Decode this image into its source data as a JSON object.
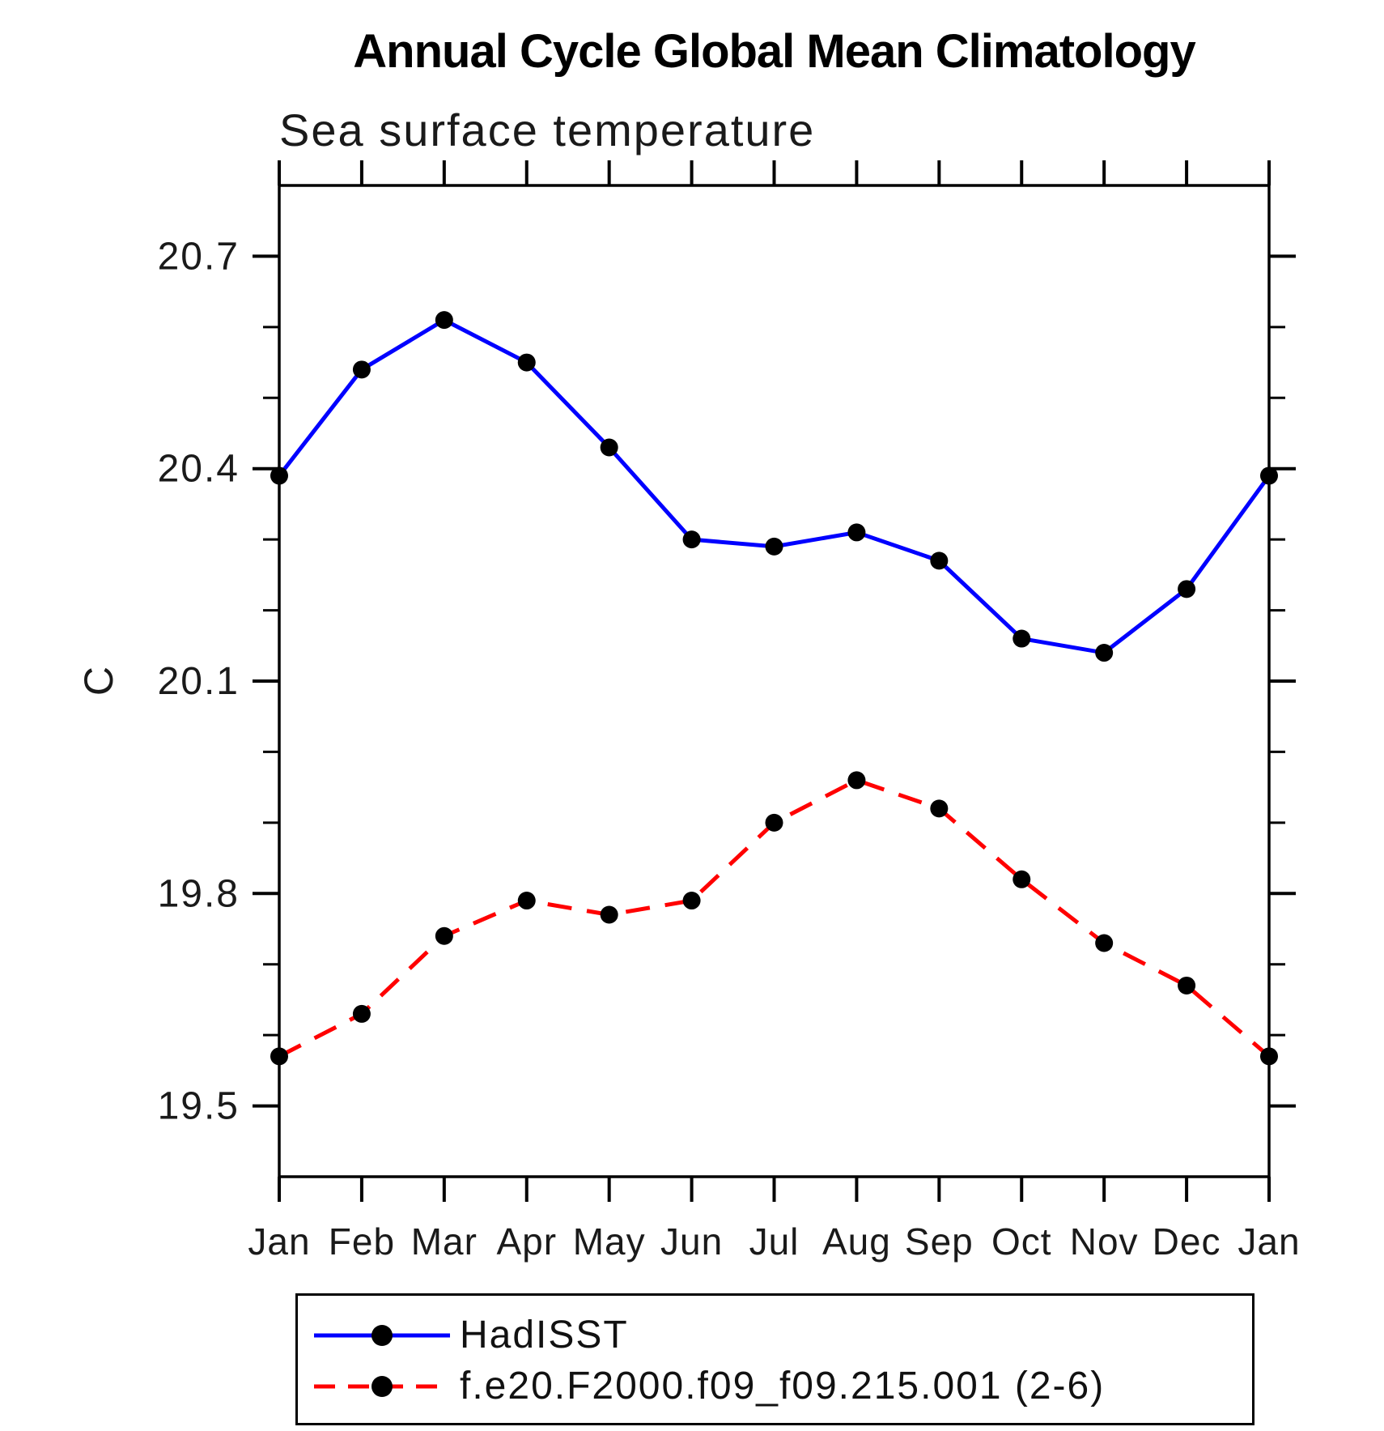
{
  "title": "Annual Cycle Global Mean Climatology",
  "chart_data": {
    "type": "line",
    "subtitle": "Sea surface temperature",
    "ylabel": "C",
    "xlabel": "",
    "categories": [
      "Jan",
      "Feb",
      "Mar",
      "Apr",
      "May",
      "Jun",
      "Jul",
      "Aug",
      "Sep",
      "Oct",
      "Nov",
      "Dec",
      "Jan"
    ],
    "series": [
      {
        "name": "HadISST",
        "color": "#0000ff",
        "line_style": "solid",
        "marker": "filled-circle",
        "marker_color": "#000000",
        "values": [
          20.39,
          20.54,
          20.61,
          20.55,
          20.43,
          20.3,
          20.29,
          20.31,
          20.27,
          20.16,
          20.14,
          20.23,
          20.39
        ]
      },
      {
        "name": "f.e20.F2000.f09_f09.215.001 (2-6)",
        "color": "#ff0000",
        "line_style": "dashed",
        "marker": "filled-circle",
        "marker_color": "#000000",
        "values": [
          19.57,
          19.63,
          19.74,
          19.79,
          19.77,
          19.79,
          19.9,
          19.96,
          19.92,
          19.82,
          19.73,
          19.67,
          19.57
        ]
      }
    ],
    "ylim": [
      19.4,
      20.8
    ],
    "yticks_major": [
      19.5,
      19.8,
      20.1,
      20.4,
      20.7
    ],
    "ytick_labels": [
      "19.5",
      "19.8",
      "20.1",
      "20.4",
      "20.7"
    ],
    "ytick_minor_step": 0.1,
    "grid": false,
    "axis_color": "#000000",
    "legend_position": "bottom"
  }
}
